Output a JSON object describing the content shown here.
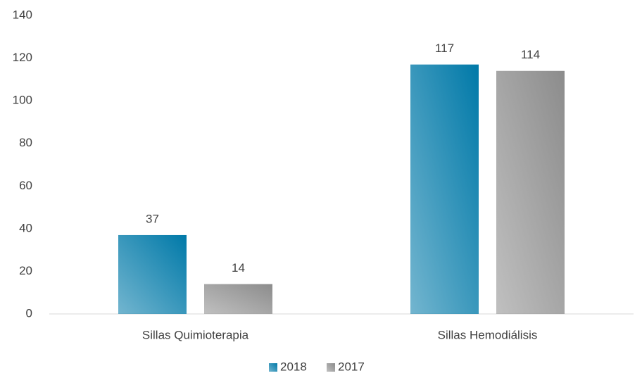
{
  "chart_data": {
    "type": "bar",
    "categories": [
      "Sillas Quimioterapia",
      "Sillas Hemodiálisis"
    ],
    "series": [
      {
        "name": "2018",
        "color": "#0079a8",
        "values": [
          37,
          117
        ]
      },
      {
        "name": "2017",
        "color": "#8c8c8c",
        "values": [
          14,
          114
        ]
      }
    ],
    "ylim": [
      0,
      140
    ],
    "yticks": [
      0,
      20,
      40,
      60,
      80,
      100,
      120,
      140
    ],
    "grid": false,
    "legend": "bottom"
  }
}
